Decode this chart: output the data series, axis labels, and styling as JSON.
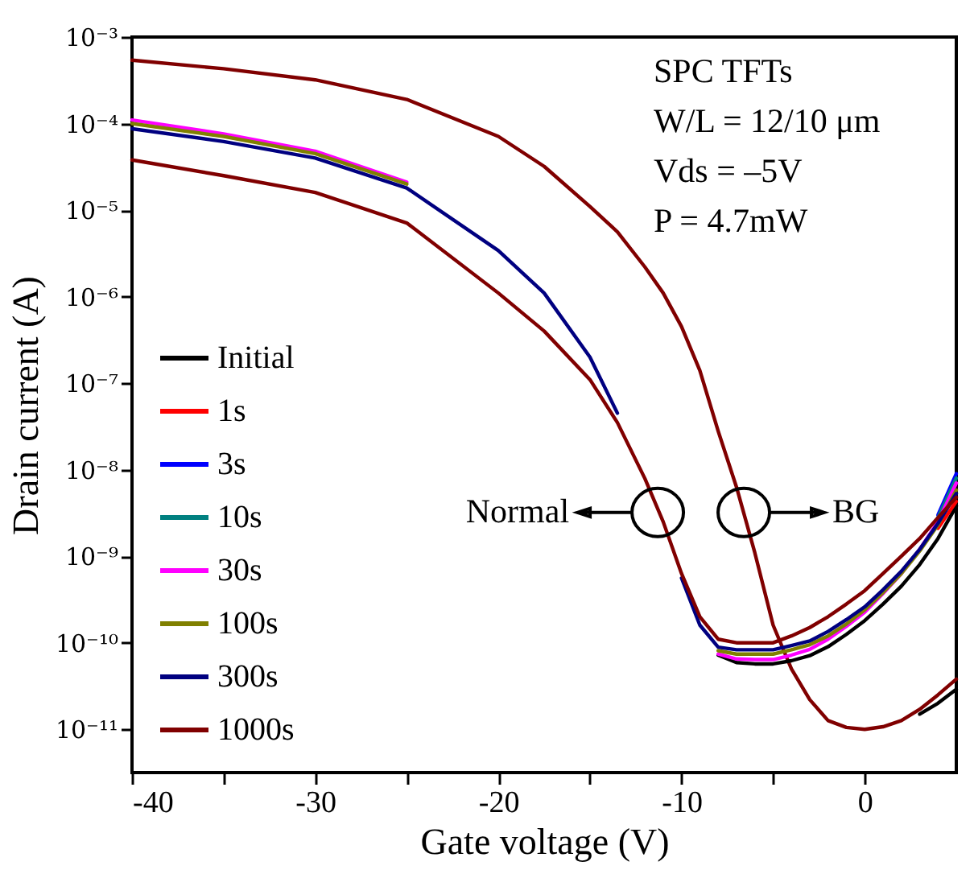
{
  "chart_data": {
    "type": "line",
    "xlabel": "Gate voltage (V)",
    "ylabel": "Drain current (A)",
    "log": "y",
    "grid": false,
    "legend": "bottom left",
    "marker": "none",
    "line_style": "solid",
    "x": [
      -40,
      -35,
      -30,
      -25,
      -20,
      -17.5,
      -15,
      -13.5,
      -12,
      -11,
      -10,
      -9,
      -8,
      -7,
      -6,
      -5,
      -4,
      -3,
      -2,
      -1,
      0,
      1,
      2,
      3,
      4,
      5
    ],
    "xlim": [
      -40,
      5
    ],
    "xticks": [
      -40,
      {
        "value": -35,
        "label": null
      },
      -30,
      {
        "value": -25,
        "label": null
      },
      -20,
      {
        "value": -15,
        "label": null
      },
      -10,
      {
        "value": -5,
        "label": null
      },
      0
    ],
    "ylim": [
      3.16e-12,
      0.001
    ],
    "yticks": [
      {
        "value": 1e-11,
        "label": "10⁻¹¹"
      },
      {
        "value": 1e-10,
        "label": "10⁻¹⁰"
      },
      {
        "value": 1e-09,
        "label": "10⁻⁹"
      },
      {
        "value": 1e-08,
        "label": "10⁻⁸"
      },
      {
        "value": 1e-07,
        "label": "10⁻⁷"
      },
      {
        "value": 1e-06,
        "label": "10⁻⁶"
      },
      {
        "value": 1e-05,
        "label": "10⁻⁵"
      },
      {
        "value": 0.0001,
        "label": "10⁻⁴"
      },
      {
        "value": 0.001,
        "label": "10⁻³"
      }
    ],
    "annotations": [
      "SPC TFTs",
      "W/L = 12/10 μm",
      "Vds = –5V",
      "P = 4.7mW",
      {
        "text": "Normal",
        "x": -11.3,
        "y": 3.2e-09
      },
      {
        "text": "BG",
        "x": -6.6,
        "y": 3.2e-09
      }
    ],
    "series": [
      {
        "color": "#000000",
        "values": [
          null,
          null,
          null,
          null,
          null,
          null,
          null,
          null,
          null,
          null,
          null,
          null,
          null,
          null,
          null,
          null,
          null,
          null,
          null,
          null,
          null,
          null,
          null,
          1.5e-11,
          2e-11,
          2.9e-11
        ]
      },
      {
        "color": "#800000",
        "values": [
          0.00054,
          0.00043,
          0.00032,
          0.00019,
          7.1e-05,
          3.2e-05,
          1.1e-05,
          5.6e-06,
          2.2e-06,
          1.1e-06,
          4.5e-07,
          1.4e-07,
          2.8e-08,
          6.3e-09,
          1.1e-09,
          1.6e-10,
          5e-11,
          2.2e-11,
          1.26e-11,
          1.05e-11,
          1e-11,
          1.07e-11,
          1.26e-11,
          1.7e-11,
          2.5e-11,
          3.8e-11
        ]
      },
      {
        "name": "Initial",
        "color": "#000000",
        "values": [
          null,
          null,
          null,
          null,
          null,
          null,
          null,
          null,
          null,
          null,
          null,
          null,
          7.2e-11,
          5.9e-11,
          5.7e-11,
          5.7e-11,
          6.2e-11,
          7.1e-11,
          9e-11,
          1.25e-10,
          1.8e-10,
          2.8e-10,
          4.5e-10,
          8e-10,
          1.6e-09,
          3.8e-09
        ]
      },
      {
        "name": "1s",
        "color": "#ff0000",
        "values": [
          null,
          null,
          null,
          null,
          null,
          null,
          null,
          null,
          null,
          null,
          null,
          null,
          null,
          null,
          null,
          null,
          null,
          null,
          null,
          null,
          null,
          null,
          null,
          null,
          2.1e-09,
          4.3e-09
        ]
      },
      {
        "name": "3s",
        "color": "#0000ff",
        "values": [
          null,
          null,
          null,
          null,
          null,
          null,
          null,
          null,
          null,
          null,
          null,
          null,
          null,
          null,
          null,
          null,
          null,
          null,
          null,
          null,
          null,
          null,
          null,
          null,
          3e-09,
          9e-09
        ]
      },
      {
        "name": "10s",
        "color": "#008080",
        "values": [
          null,
          null,
          null,
          null,
          null,
          null,
          null,
          null,
          null,
          null,
          null,
          null,
          null,
          null,
          null,
          null,
          null,
          null,
          null,
          null,
          null,
          null,
          null,
          null,
          2.8e-09,
          8e-09
        ]
      },
      {
        "name": "30s",
        "color": "#ff00ff",
        "values": [
          0.00011,
          7.6e-05,
          4.8e-05,
          2.1e-05,
          null,
          null,
          null,
          null,
          null,
          null,
          null,
          null,
          7.4e-11,
          6.5e-11,
          6.4e-11,
          6.4e-11,
          7.2e-11,
          8.4e-11,
          1.1e-10,
          1.55e-10,
          2.25e-10,
          3.7e-10,
          6.3e-10,
          1.2e-09,
          2.5e-09,
          7e-09
        ]
      },
      {
        "name": "100s",
        "color": "#808000",
        "values": [
          0.0001,
          7.1e-05,
          4.5e-05,
          2e-05,
          null,
          null,
          null,
          null,
          null,
          null,
          null,
          null,
          8.1e-11,
          7.4e-11,
          7.4e-11,
          7.4e-11,
          8.3e-11,
          9.5e-11,
          1.2e-10,
          1.65e-10,
          2.4e-10,
          3.8e-10,
          6.3e-10,
          1.15e-09,
          2.3e-09,
          5.8e-09
        ]
      },
      {
        "name": "300s",
        "color": "#000080",
        "values": [
          8.7e-05,
          6.2e-05,
          4e-05,
          1.8e-05,
          3.4e-06,
          1.1e-06,
          2e-07,
          4.5e-08,
          null,
          null,
          5.6e-10,
          1.6e-10,
          8.9e-11,
          8.3e-11,
          8.3e-11,
          8.3e-11,
          9.3e-11,
          1.05e-10,
          1.35e-10,
          1.85e-10,
          2.6e-10,
          4.1e-10,
          6.7e-10,
          1.2e-09,
          2.4e-09,
          5.3e-09
        ]
      },
      {
        "name": "1000s",
        "color": "#800000",
        "values": [
          3.8e-05,
          2.5e-05,
          1.6e-05,
          7.1e-06,
          1.1e-06,
          4e-07,
          1.1e-07,
          3.5e-08,
          7.9e-09,
          2.5e-09,
          6.3e-10,
          2e-10,
          1.1e-10,
          1e-10,
          1e-10,
          1e-10,
          1.2e-10,
          1.5e-10,
          2e-10,
          2.8e-10,
          4e-10,
          6.3e-10,
          1e-09,
          1.6e-09,
          2.8e-09,
          4.8e-09
        ]
      }
    ]
  }
}
